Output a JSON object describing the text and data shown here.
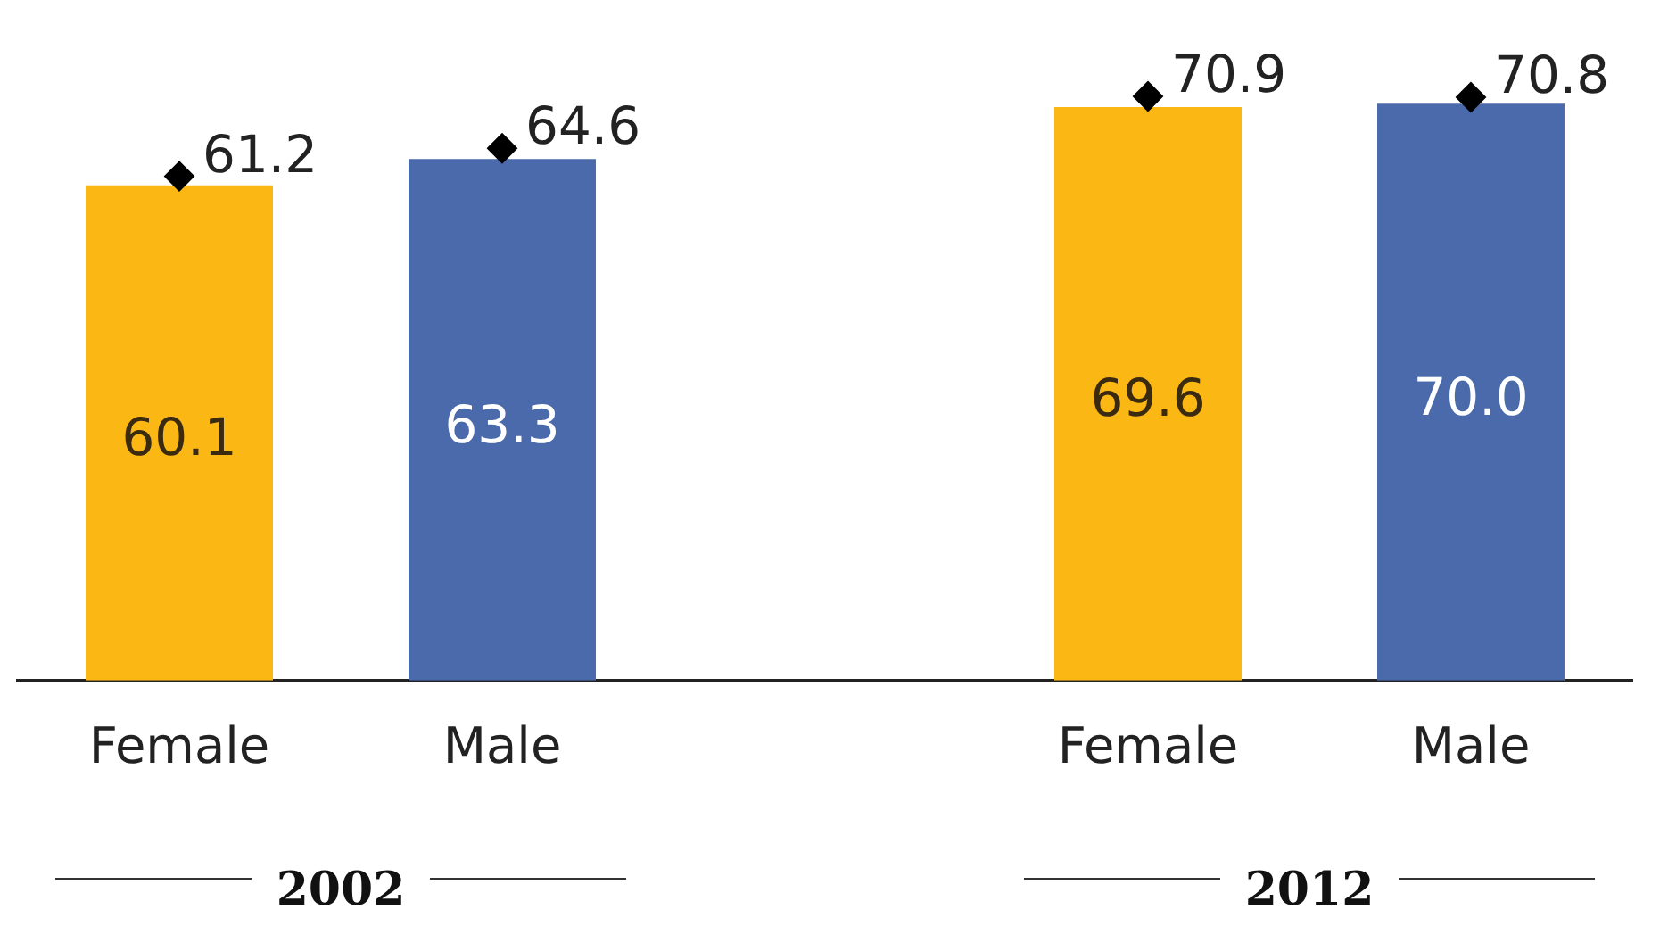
{
  "chart_data": {
    "type": "bar",
    "categories": [
      "Female",
      "Male",
      null,
      "Female",
      "Male"
    ],
    "series": [
      {
        "colors": [
          "#fbb714",
          "#4a6aab",
          null,
          "#fbb714",
          "#4a6aab"
        ],
        "values": [
          60.1,
          63.3,
          null,
          69.6,
          70.0
        ],
        "value_labels": [
          "60.1",
          "63.3",
          null,
          "69.6",
          "70.0"
        ]
      },
      {
        "type": "scatter",
        "color": "#000000",
        "values": [
          61.2,
          64.6,
          null,
          70.9,
          70.8
        ],
        "value_labels": [
          "61.2",
          "64.6",
          null,
          "70.9",
          "70.8"
        ]
      }
    ],
    "marker": "diamond",
    "legend": false,
    "grid": false,
    "tick_labels": "x",
    "annotations": [
      "2002",
      "2012"
    ]
  }
}
